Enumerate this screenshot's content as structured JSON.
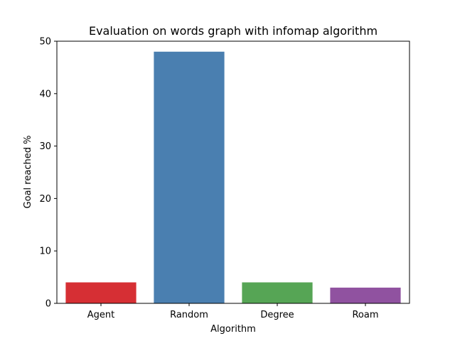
{
  "chart_data": {
    "type": "bar",
    "title": "Evaluation on words graph with infomap algorithm",
    "xlabel": "Algorithm",
    "ylabel": "Goal reached %",
    "categories": [
      "Agent",
      "Random",
      "Degree",
      "Roam"
    ],
    "values": [
      4,
      48,
      4,
      3
    ],
    "colors": [
      "#d62f34",
      "#4a7fb0",
      "#56a555",
      "#9052a0"
    ],
    "ylim": [
      0,
      50
    ],
    "yticks": [
      0,
      10,
      20,
      30,
      40,
      50
    ],
    "grid": false,
    "legend": "none"
  }
}
